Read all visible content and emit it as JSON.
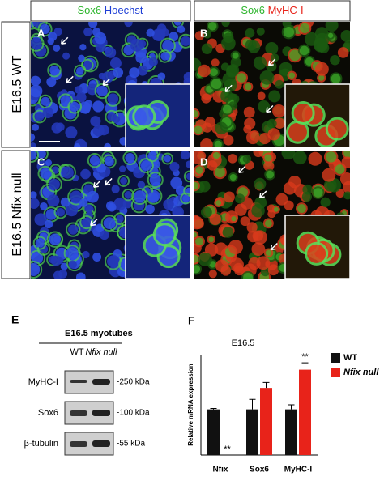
{
  "panels": {
    "col_headers": [
      {
        "green": "Sox6",
        "second": "Hoechst"
      },
      {
        "green": "Sox6",
        "second": "MyHC-I"
      }
    ],
    "row_labels": [
      "E16.5 WT",
      "E16.5 Nfix null"
    ],
    "letters": [
      "A",
      "B",
      "C",
      "D"
    ]
  },
  "blot": {
    "letter": "E",
    "title": "E16.5 myotubes",
    "lanes": [
      "WT",
      "Nfix null"
    ],
    "rows": [
      {
        "name": "MyHC-I",
        "size": "-250 kDa"
      },
      {
        "name": "Sox6",
        "size": "-100 kDa"
      },
      {
        "name": "β-tubulin",
        "size": "-55 kDa"
      }
    ]
  },
  "chart_data": {
    "type": "bar",
    "letter": "F",
    "title": "E16.5",
    "y_label": "Relative mRNA expression",
    "categories": [
      "Nfix",
      "Sox6",
      "MyHC-I"
    ],
    "ylim": [
      0,
      2.2
    ],
    "series": [
      {
        "name": "WT",
        "color": "#111111",
        "values": [
          1.0,
          1.0,
          1.0
        ],
        "errors": [
          0.02,
          0.22,
          0.1
        ]
      },
      {
        "name": "Nfix null",
        "color": "#e8231a",
        "values": [
          0,
          1.47,
          1.87
        ],
        "errors": [
          0,
          0.12,
          0.15
        ]
      }
    ],
    "annotations": [
      {
        "label": "**",
        "category": 0,
        "series": 1
      },
      {
        "label": "**",
        "category": 2,
        "series": 1
      }
    ]
  }
}
